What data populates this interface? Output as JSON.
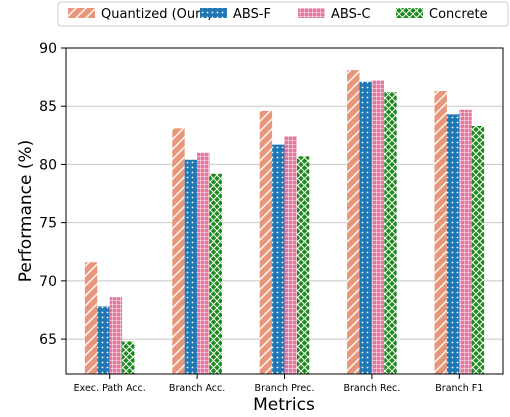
{
  "chart_data": {
    "type": "bar",
    "title": "",
    "xlabel": "Metrics",
    "ylabel": "Performance (%)",
    "ylim": [
      62,
      90
    ],
    "yticks": [
      65,
      70,
      75,
      80,
      85,
      90
    ],
    "grid": "horizontal",
    "legend_position": "top",
    "categories": [
      "Exec. Path Acc.",
      "Branch Acc.",
      "Branch Prec.",
      "Branch Rec.",
      "Branch F1"
    ],
    "series": [
      {
        "name": "Quantized (Ours)",
        "color": "#e8967a",
        "pattern": "diagonal",
        "values": [
          71.6,
          83.1,
          84.6,
          88.1,
          86.3
        ]
      },
      {
        "name": "ABS-F",
        "color": "#1f77b4",
        "pattern": "dots",
        "values": [
          67.8,
          80.4,
          81.7,
          87.1,
          84.3
        ]
      },
      {
        "name": "ABS-C",
        "color": "#e377a0",
        "pattern": "grid",
        "values": [
          68.6,
          81.0,
          82.4,
          87.2,
          84.7
        ]
      },
      {
        "name": "Concrete",
        "color": "#1a8a1a",
        "pattern": "crosshatch",
        "values": [
          64.8,
          79.2,
          80.7,
          86.2,
          83.3
        ]
      }
    ]
  }
}
